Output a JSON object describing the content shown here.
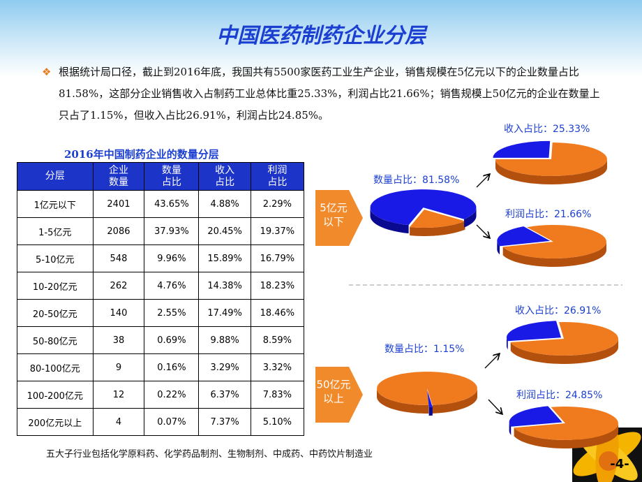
{
  "title": "中国医药制药企业分层",
  "bullet": "根据统计局口径，截止到2016年底，我国共有5500家医药工业生产企业，销售规模在5亿元以下的企业数量占比81.58%，这部分企业销售收入占制药工业总体比重25.33%，利润占比21.66%；销售规模上50亿元的企业在数量上只占了1.15%，但收入占比26.91%，利润占比24.85%。",
  "table": {
    "title": "2016年中国制药企业的数量分层",
    "header": [
      [
        "分层"
      ],
      [
        "企业",
        "数量"
      ],
      [
        "数量",
        "占比"
      ],
      [
        "收入",
        "占比"
      ],
      [
        "利润",
        "占比"
      ]
    ],
    "rows": [
      [
        "1亿元以下",
        "2401",
        "43.65%",
        "4.88%",
        "2.29%"
      ],
      [
        "1-5亿元",
        "2086",
        "37.93%",
        "20.45%",
        "19.37%"
      ],
      [
        "5-10亿元",
        "548",
        "9.96%",
        "15.89%",
        "16.79%"
      ],
      [
        "10-20亿元",
        "262",
        "4.76%",
        "14.38%",
        "18.23%"
      ],
      [
        "20-50亿元",
        "140",
        "2.55%",
        "17.49%",
        "18.46%"
      ],
      [
        "50-80亿元",
        "38",
        "0.69%",
        "9.88%",
        "8.59%"
      ],
      [
        "80-100亿元",
        "9",
        "0.16%",
        "3.29%",
        "3.32%"
      ],
      [
        "100-200亿元",
        "12",
        "0.22%",
        "6.37%",
        "7.83%"
      ],
      [
        "200亿元以上",
        "4",
        "0.07%",
        "7.37%",
        "5.10%"
      ]
    ]
  },
  "groups": [
    {
      "callout": [
        "5亿元",
        "以下"
      ],
      "pies": [
        {
          "label": "数量占比：81.58%",
          "value": 81.58
        },
        {
          "label": "收入占比：25.33%",
          "value": 25.33
        },
        {
          "label": "利润占比：21.66%",
          "value": 21.66
        }
      ]
    },
    {
      "callout": [
        "50亿元",
        "以上"
      ],
      "pies": [
        {
          "label": "数量占比：1.15%",
          "value": 1.15
        },
        {
          "label": "收入占比：26.91%",
          "value": 26.91
        },
        {
          "label": "利润占比：24.85%",
          "value": 24.85
        }
      ]
    }
  ],
  "footnote": "五大子行业包括化学原料药、化学药品制剂、生物制剂、中成药、中药饮片制造业",
  "page_number": "-4-"
}
